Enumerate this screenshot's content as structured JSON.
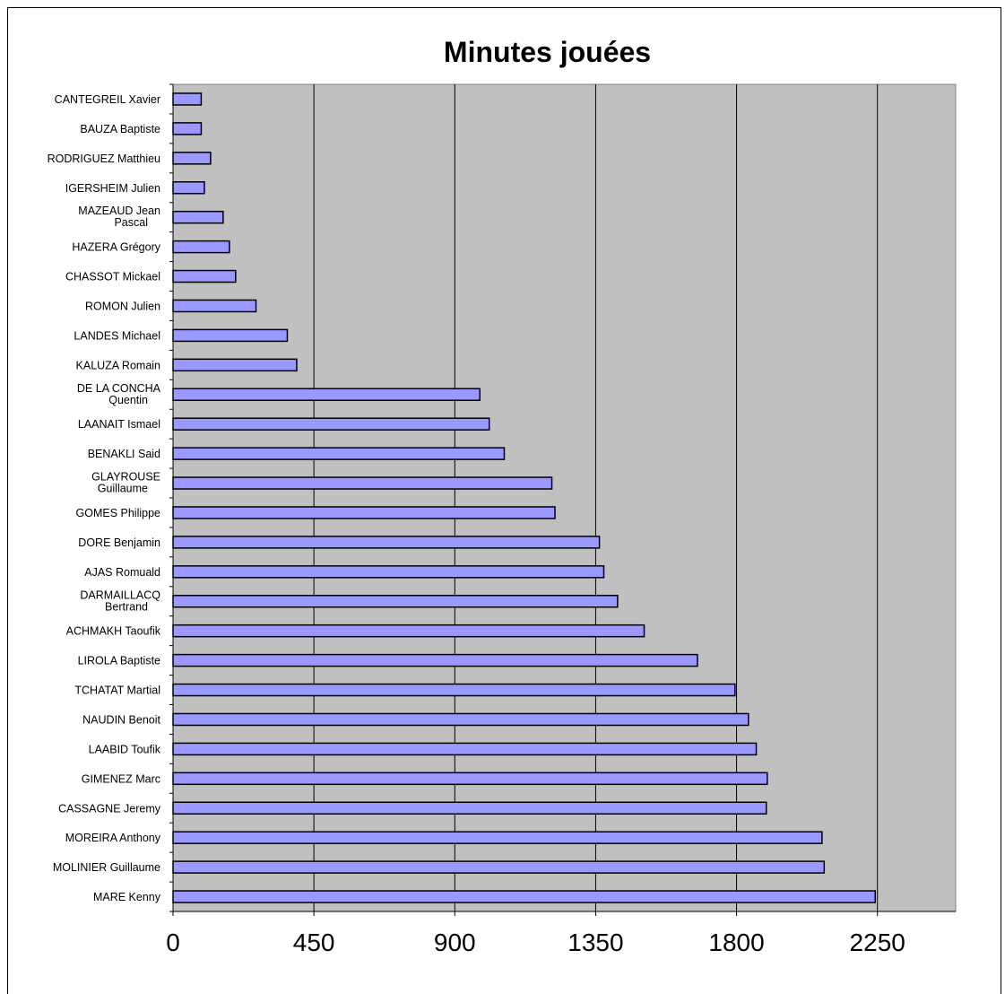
{
  "chart_data": {
    "type": "bar",
    "orientation": "horizontal",
    "title": "Minutes jouées",
    "xlabel": "",
    "ylabel": "",
    "xlim": [
      0,
      2500
    ],
    "xticks": [
      0,
      450,
      900,
      1350,
      1800,
      2250
    ],
    "grid": "vertical",
    "colors": {
      "bar": "#9999ff",
      "plot_bg": "#c0c0c0",
      "bar_edge": "#000000"
    },
    "categories": [
      "CANTEGREIL Xavier",
      "BAUZA Baptiste",
      "RODRIGUEZ Matthieu",
      "IGERSHEIM Julien",
      "MAZEAUD Jean Pascal",
      "HAZERA Grégory",
      "CHASSOT Mickael",
      "ROMON Julien",
      "LANDES Michael",
      "KALUZA Romain",
      "DE LA CONCHA Quentin",
      "LAANAIT Ismael",
      "BENAKLI Said",
      "GLAYROUSE Guillaume",
      "GOMES Philippe",
      "DORE Benjamin",
      "AJAS Romuald",
      "DARMAILLACQ Bertrand",
      "ACHMAKH Taoufik",
      "LIROLA Baptiste",
      "TCHATAT Martial",
      "NAUDIN Benoit",
      "LAABID Toufik",
      "GIMENEZ Marc",
      "CASSAGNE Jeremy",
      "MOREIRA Anthony",
      "MOLINIER Guillaume",
      "MARE Kenny"
    ],
    "values": [
      90,
      90,
      120,
      100,
      160,
      180,
      200,
      265,
      365,
      395,
      980,
      1010,
      1058,
      1210,
      1220,
      1362,
      1376,
      1420,
      1505,
      1675,
      1795,
      1838,
      1863,
      1898,
      1895,
      2073,
      2080,
      2243
    ]
  }
}
